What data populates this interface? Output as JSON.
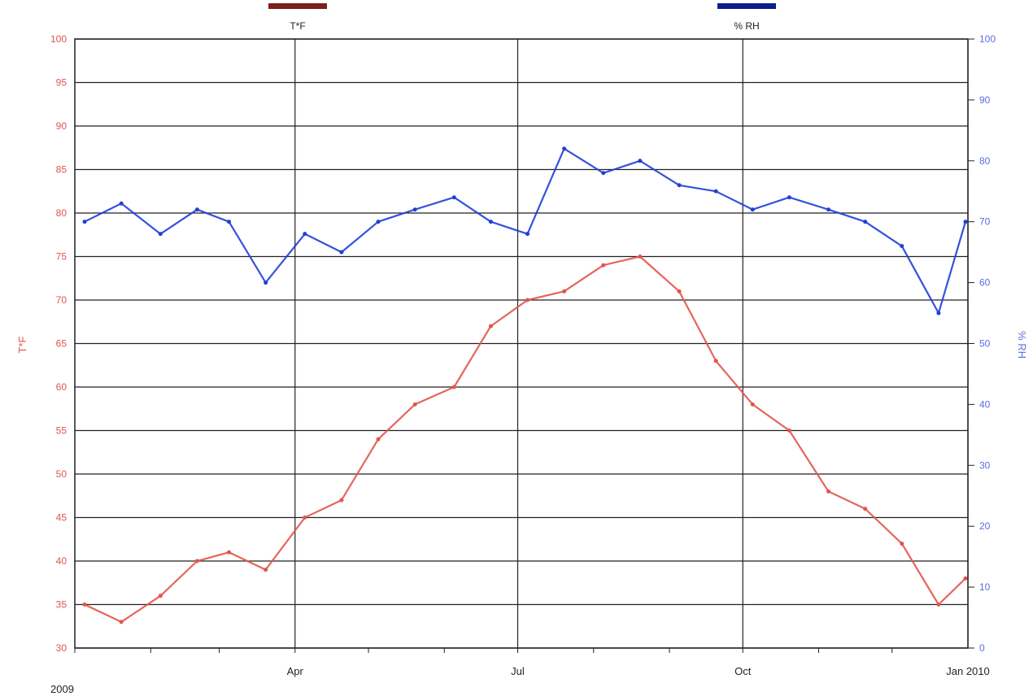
{
  "chart_data": {
    "type": "line",
    "legend": {
      "placement": "top",
      "entries": [
        {
          "label": "T*F",
          "color": "#7a1e1e"
        },
        {
          "label": "% RH",
          "color": "#0b1f8a"
        }
      ]
    },
    "x_axis": {
      "ticks": [
        "Apr",
        "Jul",
        "Oct",
        "Jan 2010"
      ],
      "start_label": "2009",
      "range": [
        "2009-01-01",
        "2010-01-01"
      ]
    },
    "y_left": {
      "label": "T*F",
      "range": [
        30,
        100
      ],
      "ticks": [
        30,
        35,
        40,
        45,
        50,
        55,
        60,
        65,
        70,
        75,
        80,
        85,
        90,
        95,
        100
      ],
      "color": "#e2554a"
    },
    "y_right": {
      "label": "% RH",
      "range": [
        0,
        100
      ],
      "ticks": [
        0,
        10,
        20,
        30,
        40,
        50,
        60,
        70,
        80,
        90,
        100
      ],
      "color": "#5a6fe0"
    },
    "grid": true,
    "series": [
      {
        "name": "T*F",
        "axis": "left",
        "color": "#e2554a",
        "points": [
          [
            "2009-01-05",
            35
          ],
          [
            "2009-01-20",
            33
          ],
          [
            "2009-02-05",
            36
          ],
          [
            "2009-02-20",
            40
          ],
          [
            "2009-03-05",
            41
          ],
          [
            "2009-03-20",
            39
          ],
          [
            "2009-04-05",
            45
          ],
          [
            "2009-04-20",
            47
          ],
          [
            "2009-05-05",
            54
          ],
          [
            "2009-05-20",
            58
          ],
          [
            "2009-06-05",
            60
          ],
          [
            "2009-06-20",
            67
          ],
          [
            "2009-07-05",
            70
          ],
          [
            "2009-07-20",
            71
          ],
          [
            "2009-08-05",
            74
          ],
          [
            "2009-08-20",
            75
          ],
          [
            "2009-09-05",
            71
          ],
          [
            "2009-09-20",
            63
          ],
          [
            "2009-10-05",
            58
          ],
          [
            "2009-10-20",
            55
          ],
          [
            "2009-11-05",
            48
          ],
          [
            "2009-11-20",
            46
          ],
          [
            "2009-12-05",
            42
          ],
          [
            "2009-12-20",
            35
          ],
          [
            "2009-12-31",
            38
          ]
        ]
      },
      {
        "name": "% RH",
        "axis": "right",
        "color": "#1f3fd8",
        "points": [
          [
            "2009-01-05",
            70
          ],
          [
            "2009-01-20",
            73
          ],
          [
            "2009-02-05",
            68
          ],
          [
            "2009-02-20",
            72
          ],
          [
            "2009-03-05",
            70
          ],
          [
            "2009-03-20",
            60
          ],
          [
            "2009-04-05",
            68
          ],
          [
            "2009-04-20",
            65
          ],
          [
            "2009-05-05",
            70
          ],
          [
            "2009-05-20",
            72
          ],
          [
            "2009-06-05",
            74
          ],
          [
            "2009-06-20",
            70
          ],
          [
            "2009-07-05",
            68
          ],
          [
            "2009-07-20",
            82
          ],
          [
            "2009-08-05",
            78
          ],
          [
            "2009-08-20",
            80
          ],
          [
            "2009-09-05",
            76
          ],
          [
            "2009-09-20",
            75
          ],
          [
            "2009-10-05",
            72
          ],
          [
            "2009-10-20",
            74
          ],
          [
            "2009-11-05",
            72
          ],
          [
            "2009-11-20",
            70
          ],
          [
            "2009-12-05",
            66
          ],
          [
            "2009-12-20",
            55
          ],
          [
            "2009-12-31",
            70
          ]
        ]
      }
    ]
  }
}
